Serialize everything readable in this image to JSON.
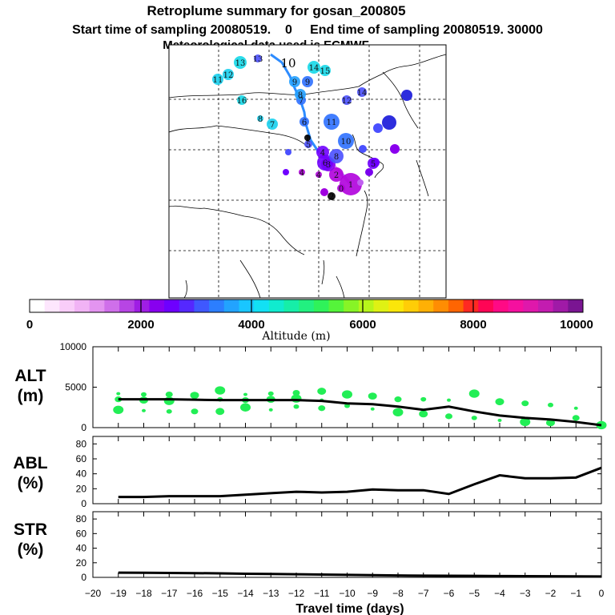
{
  "header": {
    "title": "Retroplume summary for gosan_200805",
    "subtitle": "Start time of sampling 20080519.    0     End time of sampling 20080519. 30000",
    "meteo": "Meteorological data used is ECMWF"
  },
  "colorbar": {
    "label": "Altitude  (m)",
    "ticks": [
      "0",
      "2000",
      "4000",
      "6000",
      "8000",
      "10000"
    ],
    "colors": [
      "#ffffff",
      "#fde6fd",
      "#f9cdf9",
      "#f1b3f5",
      "#e394f0",
      "#cf6fea",
      "#b745e4",
      "#9f1ee4",
      "#8800ef",
      "#6e00ff",
      "#5528ff",
      "#3f58ff",
      "#2c7eff",
      "#22a3ff",
      "#19c6ff",
      "#12e0f4",
      "#10ebcf",
      "#16eea8",
      "#22f080",
      "#2ff25a",
      "#55f43a",
      "#87f426",
      "#b7f51b",
      "#dff114",
      "#fbe60a",
      "#ffcd07",
      "#ffb005",
      "#ff8d03",
      "#ff6502",
      "#ff2a22",
      "#ff0555",
      "#ff0a85",
      "#f5109f",
      "#df18ab",
      "#c31cb0",
      "#a01aa7",
      "#7a1592"
    ]
  },
  "map": {
    "trajectory_labels": [
      {
        "t": "1",
        "c": "#b000dd"
      },
      {
        "t": "2",
        "c": "#b000dd"
      },
      {
        "t": "3",
        "c": "#8a00ee"
      },
      {
        "t": "4",
        "c": "#7000ff"
      },
      {
        "t": "5",
        "c": "#4a50ff"
      },
      {
        "t": "6",
        "c": "#2d70ff"
      },
      {
        "t": "7",
        "c": "#2d70ff"
      },
      {
        "t": "8",
        "c": "#22a0ff"
      },
      {
        "t": "9",
        "c": "#22a0ff"
      },
      {
        "t": "10",
        "c": "#000000"
      },
      {
        "t": "11",
        "c": "#18d0ee"
      },
      {
        "t": "12",
        "c": "#18d0ee"
      },
      {
        "t": "13",
        "c": "#15d8e8"
      },
      {
        "t": "14",
        "c": "#15d8e8"
      },
      {
        "t": "15",
        "c": "#15d8e8"
      },
      {
        "t": "16",
        "c": "#15d8e8"
      },
      {
        "t": "6",
        "c": "#7000ff"
      },
      {
        "t": "8",
        "c": "#4a50ff"
      },
      {
        "t": "9",
        "c": "#2d70ff"
      },
      {
        "t": "10",
        "c": "#2d70ff"
      },
      {
        "t": "11",
        "c": "#2d70ff"
      },
      {
        "t": "12",
        "c": "#4a50ff"
      },
      {
        "t": "13",
        "c": "#4a50ff"
      },
      {
        "t": "14",
        "c": "#4a50ff"
      },
      {
        "t": "7",
        "c": "#18d0ee"
      },
      {
        "t": "8",
        "c": "#18d0ee"
      },
      {
        "t": "4",
        "c": "#b000dd"
      },
      {
        "t": "5",
        "c": "#7000ff"
      },
      {
        "t": "4",
        "c": "#b000dd"
      },
      {
        "t": "1",
        "c": "#000000"
      },
      {
        "t": "2",
        "c": "#000000"
      },
      {
        "t": "0",
        "c": "#b000dd"
      }
    ]
  },
  "chart_data": [
    {
      "type": "scatter",
      "panel": "ALT",
      "ylabel": "ALT\n(m)",
      "ylabel_line1": "ALT",
      "ylabel_line2": "(m)",
      "x": [
        -19,
        -18,
        -17,
        -16,
        -15,
        -14,
        -13,
        -12,
        -11,
        -10,
        -9,
        -8,
        -7,
        -6,
        -5,
        -4,
        -3,
        -2,
        -1,
        0
      ],
      "xlim": [
        -20,
        0
      ],
      "ylim": [
        0,
        10000
      ],
      "yticks": [
        0,
        5000,
        10000
      ],
      "mean_line": [
        3500,
        3500,
        3500,
        3450,
        3400,
        3400,
        3400,
        3400,
        3300,
        3000,
        2900,
        2600,
        2200,
        2600,
        2000,
        1500,
        1200,
        1000,
        700,
        300
      ],
      "points": [
        {
          "x": -19,
          "y": 4200
        },
        {
          "x": -19,
          "y": 3500
        },
        {
          "x": -19,
          "y": 2200
        },
        {
          "x": -18,
          "y": 4100
        },
        {
          "x": -18,
          "y": 3400
        },
        {
          "x": -18,
          "y": 2100
        },
        {
          "x": -17,
          "y": 4100
        },
        {
          "x": -17,
          "y": 3300
        },
        {
          "x": -17,
          "y": 2000
        },
        {
          "x": -16,
          "y": 4000
        },
        {
          "x": -16,
          "y": 3600
        },
        {
          "x": -16,
          "y": 2000
        },
        {
          "x": -15,
          "y": 4600
        },
        {
          "x": -15,
          "y": 3500
        },
        {
          "x": -15,
          "y": 2000
        },
        {
          "x": -14,
          "y": 4100
        },
        {
          "x": -14,
          "y": 3400
        },
        {
          "x": -14,
          "y": 2500
        },
        {
          "x": -13,
          "y": 4200
        },
        {
          "x": -13,
          "y": 3500
        },
        {
          "x": -13,
          "y": 2200
        },
        {
          "x": -12,
          "y": 4300
        },
        {
          "x": -12,
          "y": 3600
        },
        {
          "x": -12,
          "y": 2600
        },
        {
          "x": -11,
          "y": 4500
        },
        {
          "x": -11,
          "y": 3400
        },
        {
          "x": -11,
          "y": 2400
        },
        {
          "x": -10,
          "y": 4100
        },
        {
          "x": -10,
          "y": 2700
        },
        {
          "x": -9,
          "y": 3900
        },
        {
          "x": -9,
          "y": 2300
        },
        {
          "x": -8,
          "y": 3500
        },
        {
          "x": -8,
          "y": 1900
        },
        {
          "x": -7,
          "y": 3500
        },
        {
          "x": -7,
          "y": 1700
        },
        {
          "x": -6,
          "y": 3400
        },
        {
          "x": -6,
          "y": 1400
        },
        {
          "x": -5,
          "y": 4200
        },
        {
          "x": -5,
          "y": 1200
        },
        {
          "x": -4,
          "y": 3200
        },
        {
          "x": -4,
          "y": 900
        },
        {
          "x": -3,
          "y": 3000
        },
        {
          "x": -3,
          "y": 700
        },
        {
          "x": -2,
          "y": 2800
        },
        {
          "x": -2,
          "y": 600
        },
        {
          "x": -1,
          "y": 2400
        },
        {
          "x": -1,
          "y": 1200
        },
        {
          "x": 0,
          "y": 300
        }
      ]
    },
    {
      "type": "line",
      "panel": "ABL",
      "ylabel_line1": "ABL",
      "ylabel_line2": "(%)",
      "x": [
        -19,
        -18,
        -17,
        -16,
        -15,
        -14,
        -13,
        -12,
        -11,
        -10,
        -9,
        -8,
        -7,
        -6,
        -5,
        -4,
        -3,
        -2,
        -1,
        0
      ],
      "values": [
        9,
        9,
        10,
        10,
        10,
        12,
        14,
        16,
        15,
        16,
        19,
        18,
        18,
        13,
        26,
        38,
        34,
        34,
        35,
        48
      ],
      "xlim": [
        -20,
        0
      ],
      "ylim": [
        0,
        90
      ],
      "yticks": [
        0,
        20,
        40,
        60,
        80
      ]
    },
    {
      "type": "line",
      "panel": "STR",
      "ylabel_line1": "STR",
      "ylabel_line2": "(%)",
      "x": [
        -19,
        -18,
        -17,
        -16,
        -15,
        -14,
        -13,
        -12,
        -11,
        -10,
        -9,
        -8,
        -7,
        -6,
        -5,
        -4,
        -3,
        -2,
        -1,
        0
      ],
      "values": [
        6.5,
        6.3,
        6.0,
        5.8,
        5.5,
        5.0,
        4.6,
        4.2,
        3.8,
        3.4,
        3.0,
        2.6,
        2.4,
        2.2,
        2.0,
        1.8,
        1.6,
        1.5,
        1.4,
        1.3
      ],
      "xlim": [
        -20,
        0
      ],
      "ylim": [
        0,
        90
      ],
      "yticks": [
        0,
        20,
        40,
        60,
        80
      ],
      "xlabel": "Travel time (days)",
      "xticks": [
        "-20",
        "-19",
        "-18",
        "-17",
        "-16",
        "-15",
        "-14",
        "-13",
        "-12",
        "-11",
        "-10",
        "-9",
        "-8",
        "-7",
        "-6",
        "-5",
        "-4",
        "-3",
        "-2",
        "-1",
        "0"
      ]
    }
  ]
}
